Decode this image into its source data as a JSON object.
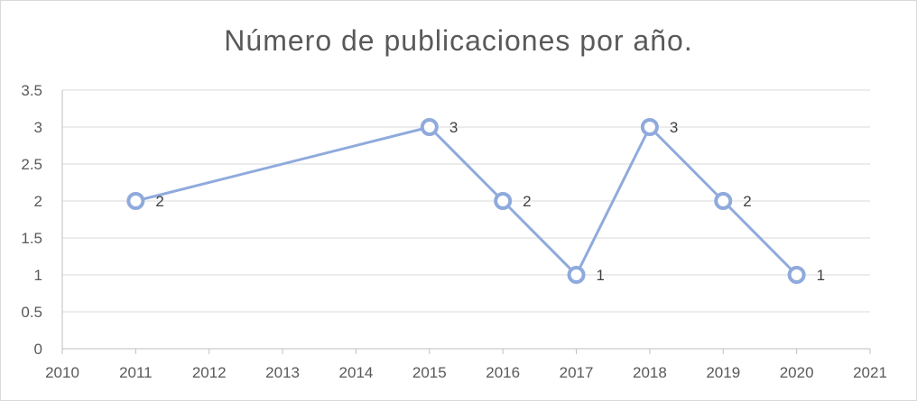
{
  "chart_data": {
    "type": "scatter",
    "title": "Número de publicaciones por año.",
    "xlabel": "",
    "ylabel": "",
    "xlim": [
      2010,
      2021
    ],
    "ylim": [
      0,
      3.5
    ],
    "x_ticks": [
      "2010",
      "2011",
      "2012",
      "2013",
      "2014",
      "2015",
      "2016",
      "2017",
      "2018",
      "2019",
      "2020",
      "2021"
    ],
    "y_ticks": [
      "0",
      "0.5",
      "1",
      "1.5",
      "2",
      "2.5",
      "3",
      "3.5"
    ],
    "grid": true,
    "legend": "none",
    "series": [
      {
        "x": [
          2011,
          2015,
          2016,
          2017,
          2018,
          2019,
          2020
        ],
        "y": [
          2,
          3,
          2,
          1,
          3,
          2,
          1
        ],
        "data_labels": [
          "2",
          "3",
          "2",
          "1",
          "3",
          "2",
          "1"
        ],
        "color": "#8faadc"
      }
    ]
  }
}
